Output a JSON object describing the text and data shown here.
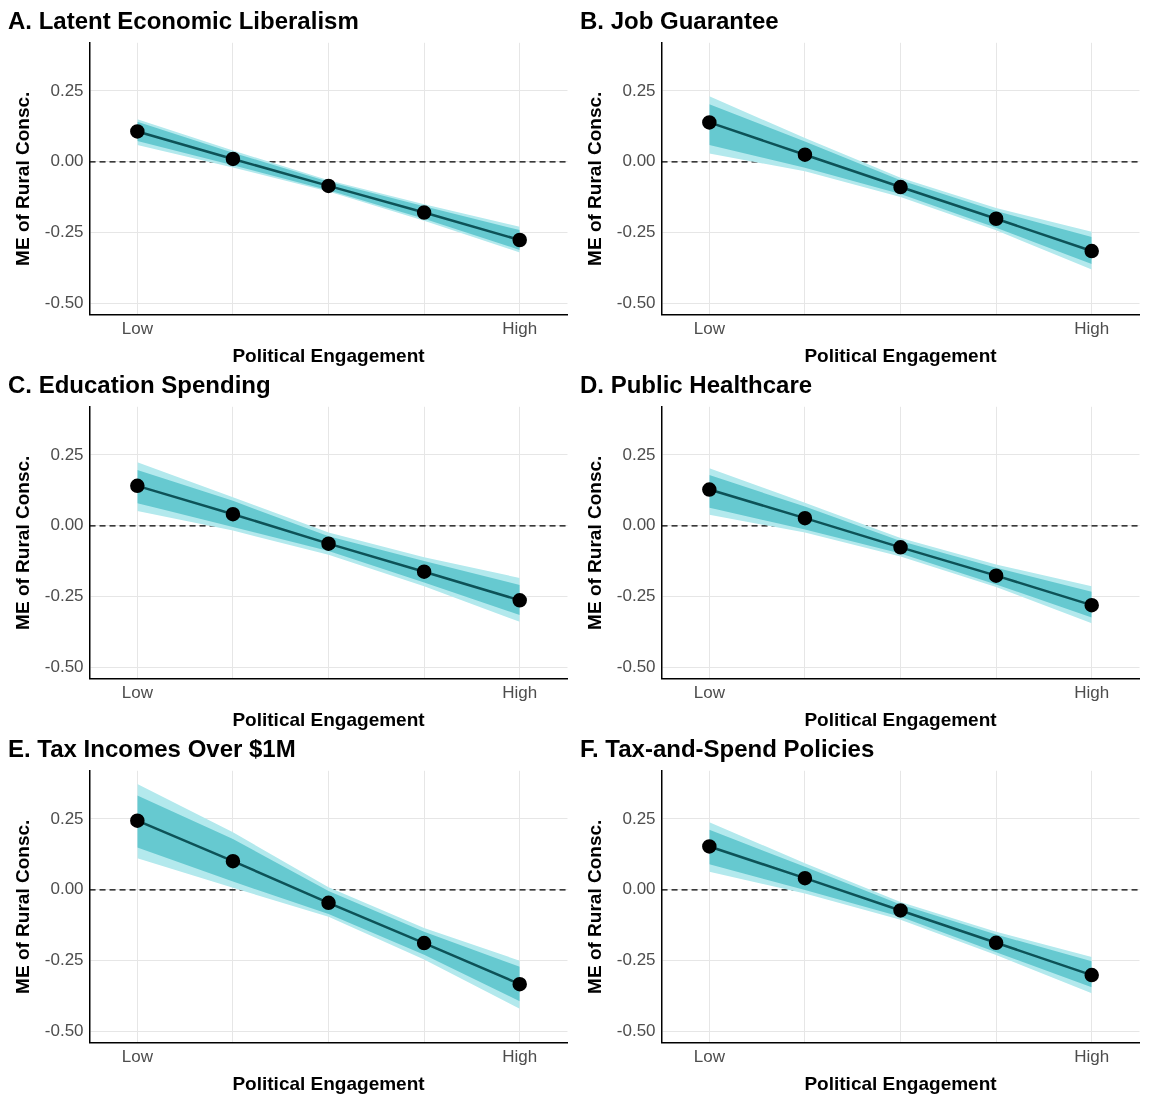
{
  "chart_data": [
    {
      "type": "line",
      "title": "A. Latent Economic Liberalism",
      "xlabel": "Political Engagement",
      "ylabel": "ME of Rural Consc.",
      "categories": [
        "Low",
        null,
        null,
        null,
        "High"
      ],
      "ylim": [
        -0.54,
        0.42
      ],
      "yticks": [
        {
          "value": -0.5,
          "label": "-0.50"
        },
        {
          "value": -0.25,
          "label": "-0.25"
        },
        {
          "value": 0,
          "label": "0.00"
        },
        {
          "value": 0.25,
          "label": "0.25"
        }
      ],
      "grid": true,
      "legend": false,
      "marker": "circle",
      "ref_lines": [
        {
          "axis": "y",
          "value": 0,
          "color": "#000000",
          "line_style": "dashed"
        }
      ],
      "series": [
        {
          "color": "#b3e9ed",
          "values": [
            null,
            null,
            null,
            null,
            null
          ],
          "lower": [
            0.059,
            -0.02,
            -0.105,
            -0.208,
            -0.32
          ],
          "upper": [
            0.15,
            0.04,
            -0.065,
            -0.15,
            -0.229
          ]
        },
        {
          "color": "#66c9d0",
          "values": [
            null,
            null,
            null,
            null,
            null
          ],
          "lower": [
            0.073,
            -0.012,
            -0.1,
            -0.201,
            -0.311
          ],
          "upper": [
            0.141,
            0.032,
            -0.07,
            -0.157,
            -0.241
          ]
        },
        {
          "color": "#0d5257",
          "values": [
            0.107,
            0.01,
            -0.085,
            -0.179,
            -0.276
          ]
        }
      ]
    },
    {
      "type": "line",
      "title": "B. Job Guarantee",
      "xlabel": "Political Engagement",
      "ylabel": "ME of Rural Consc.",
      "categories": [
        "Low",
        null,
        null,
        null,
        "High"
      ],
      "ylim": [
        -0.54,
        0.42
      ],
      "yticks": [
        {
          "value": -0.5,
          "label": "-0.50"
        },
        {
          "value": -0.25,
          "label": "-0.25"
        },
        {
          "value": 0,
          "label": "0.00"
        },
        {
          "value": 0.25,
          "label": "0.25"
        }
      ],
      "grid": true,
      "legend": false,
      "marker": "circle",
      "ref_lines": [
        {
          "axis": "y",
          "value": 0,
          "color": "#000000",
          "line_style": "dashed"
        }
      ],
      "series": [
        {
          "color": "#b3e9ed",
          "values": [
            null,
            null,
            null,
            null,
            null
          ],
          "lower": [
            0.029,
            -0.033,
            -0.124,
            -0.242,
            -0.38
          ],
          "upper": [
            0.231,
            0.084,
            -0.056,
            -0.163,
            -0.247
          ]
        },
        {
          "color": "#66c9d0",
          "values": [
            null,
            null,
            null,
            null,
            null
          ],
          "lower": [
            0.059,
            -0.021,
            -0.114,
            -0.233,
            -0.361
          ],
          "upper": [
            0.203,
            0.072,
            -0.065,
            -0.174,
            -0.265
          ]
        },
        {
          "color": "#0d5257",
          "values": [
            0.139,
            0.025,
            -0.089,
            -0.201,
            -0.315
          ]
        }
      ]
    },
    {
      "type": "line",
      "title": "C. Education Spending",
      "xlabel": "Political Engagement",
      "ylabel": "ME of Rural Consc.",
      "categories": [
        "Low",
        null,
        null,
        null,
        "High"
      ],
      "ylim": [
        -0.54,
        0.42
      ],
      "yticks": [
        {
          "value": -0.5,
          "label": "-0.50"
        },
        {
          "value": -0.25,
          "label": "-0.25"
        },
        {
          "value": 0,
          "label": "0.00"
        },
        {
          "value": 0.25,
          "label": "0.25"
        }
      ],
      "grid": true,
      "legend": false,
      "marker": "circle",
      "ref_lines": [
        {
          "axis": "y",
          "value": 0,
          "color": "#000000",
          "line_style": "dashed"
        }
      ],
      "series": [
        {
          "color": "#b3e9ed",
          "values": [
            null,
            null,
            null,
            null,
            null
          ],
          "lower": [
            0.052,
            -0.017,
            -0.102,
            -0.213,
            -0.339
          ],
          "upper": [
            0.224,
            0.101,
            -0.024,
            -0.111,
            -0.184
          ]
        },
        {
          "color": "#66c9d0",
          "values": [
            null,
            null,
            null,
            null,
            null
          ],
          "lower": [
            0.08,
            -0.004,
            -0.089,
            -0.2,
            -0.315
          ],
          "upper": [
            0.197,
            0.088,
            -0.037,
            -0.124,
            -0.209
          ]
        },
        {
          "color": "#0d5257",
          "values": [
            0.141,
            0.041,
            -0.063,
            -0.162,
            -0.263
          ]
        }
      ]
    },
    {
      "type": "line",
      "title": "D. Public Healthcare",
      "xlabel": "Political Engagement",
      "ylabel": "ME of Rural Consc.",
      "categories": [
        "Low",
        null,
        null,
        null,
        "High"
      ],
      "ylim": [
        -0.54,
        0.42
      ],
      "yticks": [
        {
          "value": -0.5,
          "label": "-0.50"
        },
        {
          "value": -0.25,
          "label": "-0.25"
        },
        {
          "value": 0,
          "label": "0.00"
        },
        {
          "value": 0.25,
          "label": "0.25"
        }
      ],
      "grid": true,
      "legend": false,
      "marker": "circle",
      "ref_lines": [
        {
          "axis": "y",
          "value": 0,
          "color": "#000000",
          "line_style": "dashed"
        }
      ],
      "series": [
        {
          "color": "#b3e9ed",
          "values": [
            null,
            null,
            null,
            null,
            null
          ],
          "lower": [
            0.039,
            -0.024,
            -0.108,
            -0.216,
            -0.344
          ],
          "upper": [
            0.203,
            0.081,
            -0.043,
            -0.137,
            -0.213
          ]
        },
        {
          "color": "#66c9d0",
          "values": [
            null,
            null,
            null,
            null,
            null
          ],
          "lower": [
            0.064,
            -0.013,
            -0.098,
            -0.207,
            -0.324
          ],
          "upper": [
            0.179,
            0.068,
            -0.054,
            -0.148,
            -0.233
          ]
        },
        {
          "color": "#0d5257",
          "values": [
            0.128,
            0.027,
            -0.076,
            -0.176,
            -0.28
          ]
        }
      ]
    },
    {
      "type": "line",
      "title": "E. Tax Incomes Over $1M",
      "xlabel": "Political Engagement",
      "ylabel": "ME of Rural Consc.",
      "categories": [
        "Low",
        null,
        null,
        null,
        "High"
      ],
      "ylim": [
        -0.54,
        0.42
      ],
      "yticks": [
        {
          "value": -0.5,
          "label": "-0.50"
        },
        {
          "value": -0.25,
          "label": "-0.25"
        },
        {
          "value": 0,
          "label": "0.00"
        },
        {
          "value": 0.25,
          "label": "0.25"
        }
      ],
      "grid": true,
      "legend": false,
      "marker": "circle",
      "ref_lines": [
        {
          "axis": "y",
          "value": 0,
          "color": "#000000",
          "line_style": "dashed"
        }
      ],
      "series": [
        {
          "color": "#b3e9ed",
          "values": [
            null,
            null,
            null,
            null,
            null
          ],
          "lower": [
            0.111,
            0.007,
            -0.095,
            -0.246,
            -0.42
          ],
          "upper": [
            0.373,
            0.203,
            0.009,
            -0.135,
            -0.25
          ]
        },
        {
          "color": "#66c9d0",
          "values": [
            null,
            null,
            null,
            null,
            null
          ],
          "lower": [
            0.149,
            0.029,
            -0.085,
            -0.229,
            -0.393
          ],
          "upper": [
            0.333,
            0.179,
            -0.004,
            -0.148,
            -0.272
          ]
        },
        {
          "color": "#0d5257",
          "values": [
            0.244,
            0.101,
            -0.046,
            -0.188,
            -0.333
          ]
        }
      ]
    },
    {
      "type": "line",
      "title": "F. Tax-and-Spend Policies",
      "xlabel": "Political Engagement",
      "ylabel": "ME of Rural Consc.",
      "categories": [
        "Low",
        null,
        null,
        null,
        "High"
      ],
      "ylim": [
        -0.54,
        0.42
      ],
      "yticks": [
        {
          "value": -0.5,
          "label": "-0.50"
        },
        {
          "value": -0.25,
          "label": "-0.25"
        },
        {
          "value": 0,
          "label": "0.00"
        },
        {
          "value": 0.25,
          "label": "0.25"
        }
      ],
      "grid": true,
      "legend": false,
      "marker": "circle",
      "ref_lines": [
        {
          "axis": "y",
          "value": 0,
          "color": "#000000",
          "line_style": "dashed"
        }
      ],
      "series": [
        {
          "color": "#b3e9ed",
          "values": [
            null,
            null,
            null,
            null,
            null
          ],
          "lower": [
            0.064,
            -0.013,
            -0.106,
            -0.23,
            -0.365
          ],
          "upper": [
            0.238,
            0.094,
            -0.043,
            -0.148,
            -0.237
          ]
        },
        {
          "color": "#66c9d0",
          "values": [
            null,
            null,
            null,
            null,
            null
          ],
          "lower": [
            0.09,
            -0.001,
            -0.095,
            -0.22,
            -0.344
          ],
          "upper": [
            0.212,
            0.081,
            -0.052,
            -0.158,
            -0.252
          ]
        },
        {
          "color": "#0d5257",
          "values": [
            0.153,
            0.041,
            -0.073,
            -0.187,
            -0.301
          ]
        }
      ]
    }
  ]
}
